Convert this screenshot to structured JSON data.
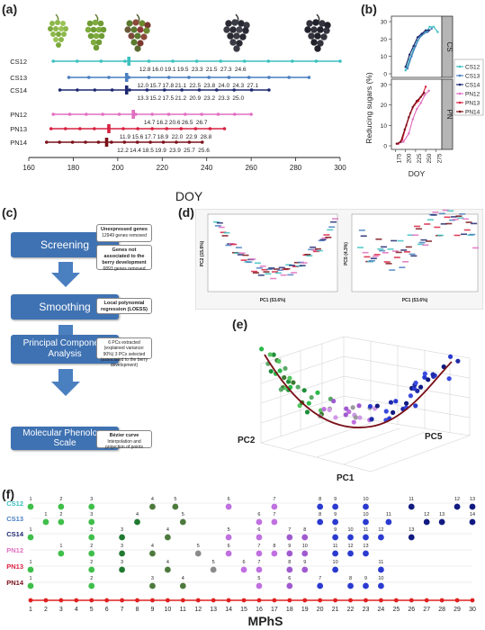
{
  "panel_labels": {
    "a": "(a)",
    "b": "(b)",
    "c": "(c)",
    "d": "(d)",
    "e": "(e)",
    "f": "(f)"
  },
  "panel_a": {
    "xlabel": "DOY",
    "xticks": [
      160,
      180,
      200,
      220,
      240,
      260,
      280,
      300
    ],
    "rows": [
      {
        "name": "CS12",
        "color": "#3cbfc0",
        "y": 68,
        "values": [
          "12.8",
          "16.0",
          "19.1",
          "19.5",
          "23.3",
          "21.5",
          "27.3",
          "24.6"
        ]
      },
      {
        "name": "CS13",
        "color": "#4a7fc0",
        "y": 86,
        "values": [
          "12.0",
          "15.7",
          "17.8",
          "21.1",
          "22.5",
          "23.8",
          "24.0",
          "24.3",
          "27.1"
        ]
      },
      {
        "name": "CS14",
        "color": "#1d2870",
        "y": 100,
        "values": [
          "13.3",
          "15.2",
          "17.5",
          "21.2",
          "20.9",
          "23.2",
          "23.3",
          "25.0"
        ]
      },
      {
        "name": "PN12",
        "color": "#e070c0",
        "y": 127,
        "values": [
          "14.7",
          "16.2",
          "20.6",
          "26.5",
          "26.7"
        ]
      },
      {
        "name": "PN13",
        "color": "#d82040",
        "y": 143,
        "values": [
          "11.9",
          "15.6",
          "17.7",
          "18.9",
          "22.0",
          "22.9",
          "28.8"
        ]
      },
      {
        "name": "PN14",
        "color": "#7a1018",
        "y": 158,
        "values": [
          "12.2",
          "14.4",
          "18.5",
          "19.9",
          "23.9",
          "25.7",
          "25.6"
        ]
      }
    ]
  },
  "panel_b": {
    "ylabel": "Reducing sugars (%)",
    "xlabel": "DOY",
    "yticks": [
      "0",
      "10",
      "20",
      "30"
    ],
    "xticks": [
      "175",
      "200",
      "225",
      "250",
      "275"
    ],
    "strip_labels": [
      "CS",
      "PN"
    ],
    "legend": [
      {
        "name": "CS12",
        "color": "#3cbfc0"
      },
      {
        "name": "CS13",
        "color": "#4a7fc0"
      },
      {
        "name": "CS14",
        "color": "#1d2870"
      },
      {
        "name": "PN12",
        "color": "#e070c0"
      },
      {
        "name": "PN13",
        "color": "#d82040"
      },
      {
        "name": "PN14",
        "color": "#7a1018"
      }
    ]
  },
  "panel_c": {
    "steps": [
      {
        "label": "Screening",
        "info": [
          {
            "title": "Unexpressed genes",
            "detail": "12949 genes removed"
          },
          {
            "title": "Genes not associated to the berry development",
            "detail": "6893 genes removed"
          }
        ]
      },
      {
        "label": "Smoothing",
        "info": [
          {
            "title": "Local polynomial regression (LOESS)",
            "detail": ""
          }
        ]
      },
      {
        "label": "Principal Component Analysis",
        "info": [
          {
            "title": "",
            "detail": "6 PCs extracted (explained variance: 90%) 3 PCs selected (associated to the berry development)"
          }
        ]
      },
      {
        "label": "Molecular Phenology Scale",
        "info": [
          {
            "title": "Bézier curve",
            "detail": "Interpolation and projection of points"
          }
        ]
      }
    ]
  },
  "panel_d": {
    "left": {
      "xlabel": "PC1 (53.6%)",
      "ylabel": "PC2 (15.8%)"
    },
    "right": {
      "xlabel": "PC1 (53.6%)",
      "ylabel": "PC5 (4.3%)"
    }
  },
  "panel_e": {
    "labels": {
      "pc1": "PC1",
      "pc2": "PC2",
      "pc5": "PC5"
    }
  },
  "panel_f": {
    "xlabel": "MPhS",
    "xticks": [
      1,
      2,
      3,
      4,
      5,
      6,
      7,
      8,
      9,
      10,
      11,
      12,
      13,
      14,
      15,
      16,
      17,
      18,
      19,
      20,
      21,
      22,
      23,
      24,
      25,
      26,
      27,
      28,
      29,
      30
    ],
    "rows": [
      {
        "name": "CS12",
        "color": "#3cbfc0"
      },
      {
        "name": "CS13",
        "color": "#4a7fc0"
      },
      {
        "name": "CS14",
        "color": "#1d2870"
      },
      {
        "name": "PN12",
        "color": "#e070c0"
      },
      {
        "name": "PN13",
        "color": "#d82040"
      },
      {
        "name": "PN14",
        "color": "#7a1018"
      }
    ]
  }
}
